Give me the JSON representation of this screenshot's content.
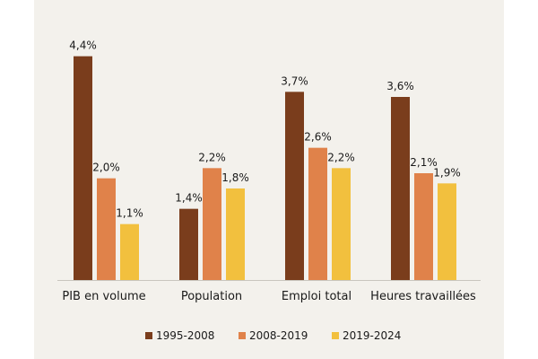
{
  "chart_data": {
    "type": "bar",
    "title": "",
    "xlabel": "",
    "ylabel": "",
    "ylim": [
      0,
      4.8
    ],
    "grid": false,
    "legend_position": "bottom",
    "categories": [
      "PIB en volume",
      "Population",
      "Emploi total",
      "Heures travaillées"
    ],
    "series": [
      {
        "name": "1995-2008",
        "color": "#7a3d1c",
        "values": [
          4.4,
          1.4,
          3.7,
          3.6
        ],
        "labels": [
          "4,4%",
          "1,4%",
          "3,7%",
          "3,6%"
        ]
      },
      {
        "name": "2008-2019",
        "color": "#e0824a",
        "values": [
          2.0,
          2.2,
          2.6,
          2.1
        ],
        "labels": [
          "2,0%",
          "2,2%",
          "2,6%",
          "2,1%"
        ]
      },
      {
        "name": "2019-2024",
        "color": "#f2c03e",
        "values": [
          1.1,
          1.8,
          2.2,
          1.9
        ],
        "labels": [
          "1,1%",
          "1,8%",
          "2,2%",
          "1,9%"
        ]
      }
    ]
  }
}
